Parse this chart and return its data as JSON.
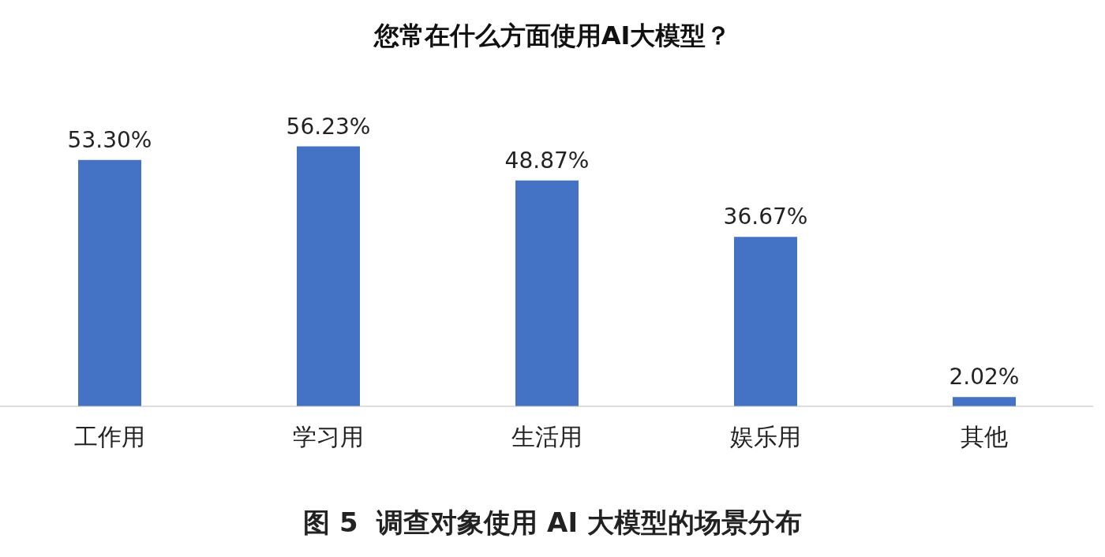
{
  "chart_data": {
    "type": "bar",
    "title": "您常在什么方面使用AI大模型？",
    "categories": [
      "工作用",
      "学习用",
      "生活用",
      "娱乐用",
      "其他"
    ],
    "values": [
      53.3,
      56.23,
      48.87,
      36.67,
      2.02
    ],
    "value_labels": [
      "53.30%",
      "56.23%",
      "48.87%",
      "36.67%",
      "2.02%"
    ],
    "color": "#4472c4",
    "grid": false,
    "annotations": [
      "图 5  调查对象使用 AI 大模型的场景分布"
    ]
  }
}
